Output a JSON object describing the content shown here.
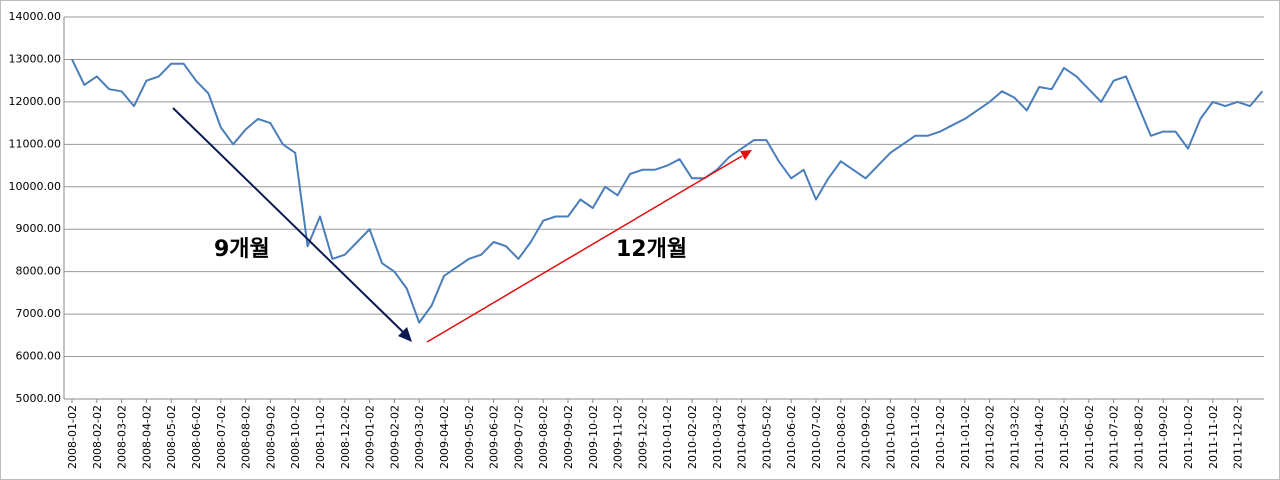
{
  "chart_data": {
    "type": "line",
    "categories": [
      "2008-01-02",
      null,
      "2008-02-02",
      null,
      "2008-03-02",
      null,
      "2008-04-02",
      null,
      "2008-05-02",
      null,
      "2008-06-02",
      null,
      "2008-07-02",
      null,
      "2008-08-02",
      null,
      "2008-09-02",
      null,
      "2008-10-02",
      null,
      "2008-11-02",
      null,
      "2008-12-02",
      null,
      "2009-01-02",
      null,
      "2009-02-02",
      null,
      "2009-03-02",
      null,
      "2009-04-02",
      null,
      "2009-05-02",
      null,
      "2009-06-02",
      null,
      "2009-07-02",
      null,
      "2009-08-02",
      null,
      "2009-09-02",
      null,
      "2009-10-02",
      null,
      "2009-11-02",
      null,
      "2009-12-02",
      null,
      "2010-01-02",
      null,
      "2010-02-02",
      null,
      "2010-03-02",
      null,
      "2010-04-02",
      null,
      "2010-05-02",
      null,
      "2010-06-02",
      null,
      "2010-07-02",
      null,
      "2010-08-02",
      null,
      "2010-09-02",
      null,
      "2010-10-02",
      null,
      "2010-11-02",
      null,
      "2010-12-02",
      null,
      "2011-01-02",
      null,
      "2011-02-02",
      null,
      "2011-03-02",
      null,
      "2011-04-02",
      null,
      "2011-05-02",
      null,
      "2011-06-02",
      null,
      "2011-07-02",
      null,
      "2011-08-02",
      null,
      "2011-09-02",
      null,
      "2011-10-02",
      null,
      "2011-11-02",
      null,
      "2011-12-02",
      null,
      null
    ],
    "values": [
      13000,
      12400,
      12600,
      12300,
      12250,
      11900,
      12500,
      12600,
      12900,
      12900,
      12500,
      12200,
      11400,
      11000,
      11350,
      11600,
      11500,
      11000,
      10800,
      8600,
      9300,
      8300,
      8400,
      8700,
      9000,
      8200,
      8000,
      7600,
      6800,
      7200,
      7900,
      8100,
      8300,
      8400,
      8700,
      8600,
      8300,
      8700,
      9200,
      9300,
      9300,
      9700,
      9500,
      10000,
      9800,
      10300,
      10400,
      10400,
      10500,
      10650,
      10200,
      10200,
      10400,
      10700,
      10900,
      11100,
      11100,
      10600,
      10200,
      10400,
      9700,
      10200,
      10600,
      10400,
      10200,
      10500,
      10800,
      11000,
      11200,
      11200,
      11300,
      11450,
      11600,
      11800,
      12000,
      12250,
      12100,
      11800,
      12350,
      12300,
      12800,
      12600,
      12300,
      12000,
      12500,
      12600,
      11900,
      11200,
      11300,
      11300,
      10900,
      11600,
      12000,
      11900,
      12000,
      11900,
      12250
    ],
    "color": "#4a7ebb",
    "ylim": [
      5000,
      14000
    ],
    "yticks": [
      {
        "value": 5000,
        "label": "5000.00"
      },
      {
        "value": 6000,
        "label": "6000.00"
      },
      {
        "value": 7000,
        "label": "7000.00"
      },
      {
        "value": 8000,
        "label": "8000.00"
      },
      {
        "value": 9000,
        "label": "9000.00"
      },
      {
        "value": 10000,
        "label": "10000.00"
      },
      {
        "value": 11000,
        "label": "11000.00"
      },
      {
        "value": 12000,
        "label": "12000.00"
      },
      {
        "value": 13000,
        "label": "13000.00"
      },
      {
        "value": 14000,
        "label": "14000.00"
      }
    ],
    "grid": true,
    "annotations": [
      "9개월",
      "12개월"
    ]
  }
}
